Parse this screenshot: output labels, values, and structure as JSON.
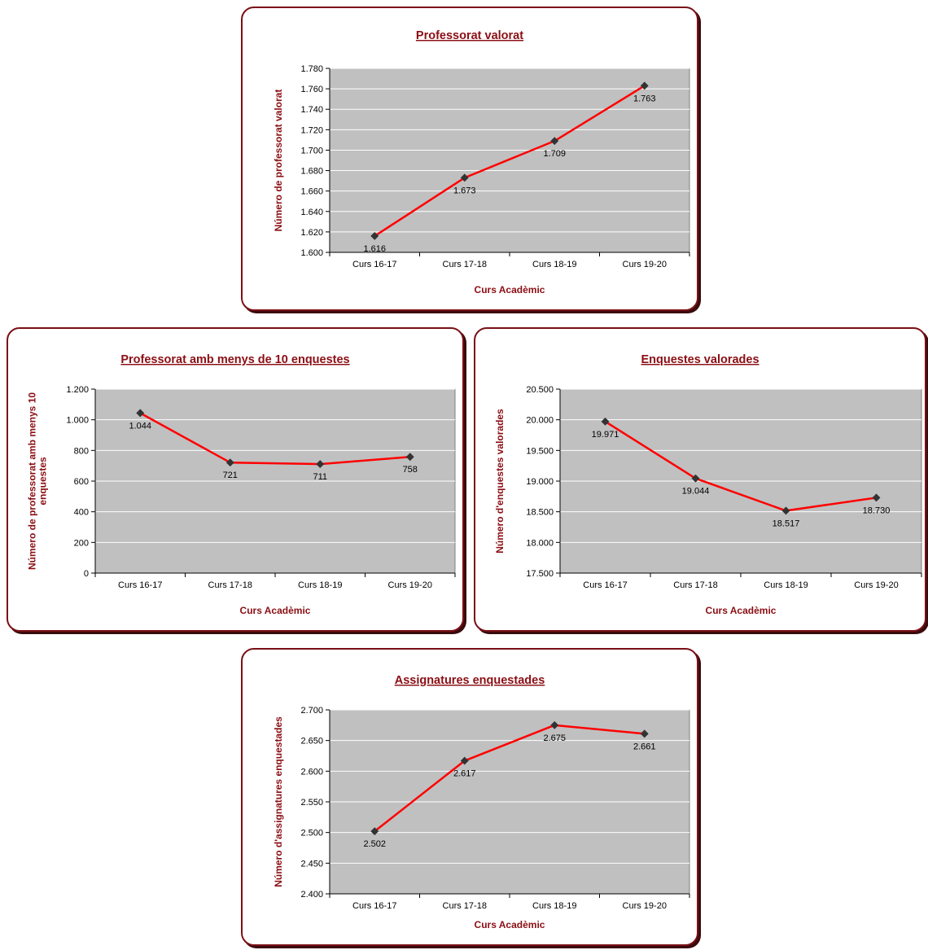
{
  "colors": {
    "panel_border": "#7a1016",
    "title": "#8b0e14",
    "plot_bg": "#c0c0c0",
    "line": "#ff0000",
    "marker": "#333333",
    "grid": "#ffffff"
  },
  "chart_data": [
    {
      "type": "line",
      "title": "Professorat valorat",
      "xlabel": "Curs Acadèmic",
      "ylabel": "Número de professorat valorat",
      "categories": [
        "Curs 16-17",
        "Curs 17-18",
        "Curs 18-19",
        "Curs 19-20"
      ],
      "series": [
        {
          "values": [
            1616,
            1673,
            1709,
            1763
          ]
        }
      ],
      "data_labels": [
        "1.616",
        "1.673",
        "1.709",
        "1.763"
      ],
      "ylim": [
        1600,
        1780
      ],
      "yticks": [
        1600,
        1620,
        1640,
        1660,
        1680,
        1700,
        1720,
        1740,
        1760,
        1780
      ],
      "ytick_labels": [
        "1.600",
        "1.620",
        "1.640",
        "1.660",
        "1.680",
        "1.700",
        "1.720",
        "1.740",
        "1.760",
        "1.780"
      ],
      "grid": true
    },
    {
      "type": "line",
      "title": "Professorat amb menys de 10 enquestes",
      "xlabel": "Curs Acadèmic",
      "ylabel": [
        "Número de professorat amb menys 10",
        "enquestes"
      ],
      "categories": [
        "Curs 16-17",
        "Curs 17-18",
        "Curs 18-19",
        "Curs 19-20"
      ],
      "series": [
        {
          "values": [
            1044,
            721,
            711,
            758
          ]
        }
      ],
      "data_labels": [
        "1.044",
        "721",
        "711",
        "758"
      ],
      "ylim": [
        0,
        1200
      ],
      "yticks": [
        0,
        200,
        400,
        600,
        800,
        1000,
        1200
      ],
      "ytick_labels": [
        "0",
        "200",
        "400",
        "600",
        "800",
        "1.000",
        "1.200"
      ],
      "grid": true
    },
    {
      "type": "line",
      "title": "Enquestes valorades",
      "xlabel": "Curs Acadèmic",
      "ylabel": "Número d'enquestes valorades",
      "categories": [
        "Curs 16-17",
        "Curs 17-18",
        "Curs 18-19",
        "Curs 19-20"
      ],
      "series": [
        {
          "values": [
            19971,
            19044,
            18517,
            18730
          ]
        }
      ],
      "data_labels": [
        "19.971",
        "19.044",
        "18.517",
        "18.730"
      ],
      "ylim": [
        17500,
        20500
      ],
      "yticks": [
        17500,
        18000,
        18500,
        19000,
        19500,
        20000,
        20500
      ],
      "ytick_labels": [
        "17.500",
        "18.000",
        "18.500",
        "19.000",
        "19.500",
        "20.000",
        "20.500"
      ],
      "grid": true
    },
    {
      "type": "line",
      "title": "Assignatures enquestades",
      "xlabel": "Curs Acadèmic",
      "ylabel": "Número d'assignatures enquestades",
      "categories": [
        "Curs 16-17",
        "Curs 17-18",
        "Curs 18-19",
        "Curs 19-20"
      ],
      "series": [
        {
          "values": [
            2502,
            2617,
            2675,
            2661
          ]
        }
      ],
      "data_labels": [
        "2.502",
        "2.617",
        "2.675",
        "2.661"
      ],
      "ylim": [
        2400,
        2700
      ],
      "yticks": [
        2400,
        2450,
        2500,
        2550,
        2600,
        2650,
        2700
      ],
      "ytick_labels": [
        "2.400",
        "2.450",
        "2.500",
        "2.550",
        "2.600",
        "2.650",
        "2.700"
      ],
      "grid": true
    }
  ]
}
